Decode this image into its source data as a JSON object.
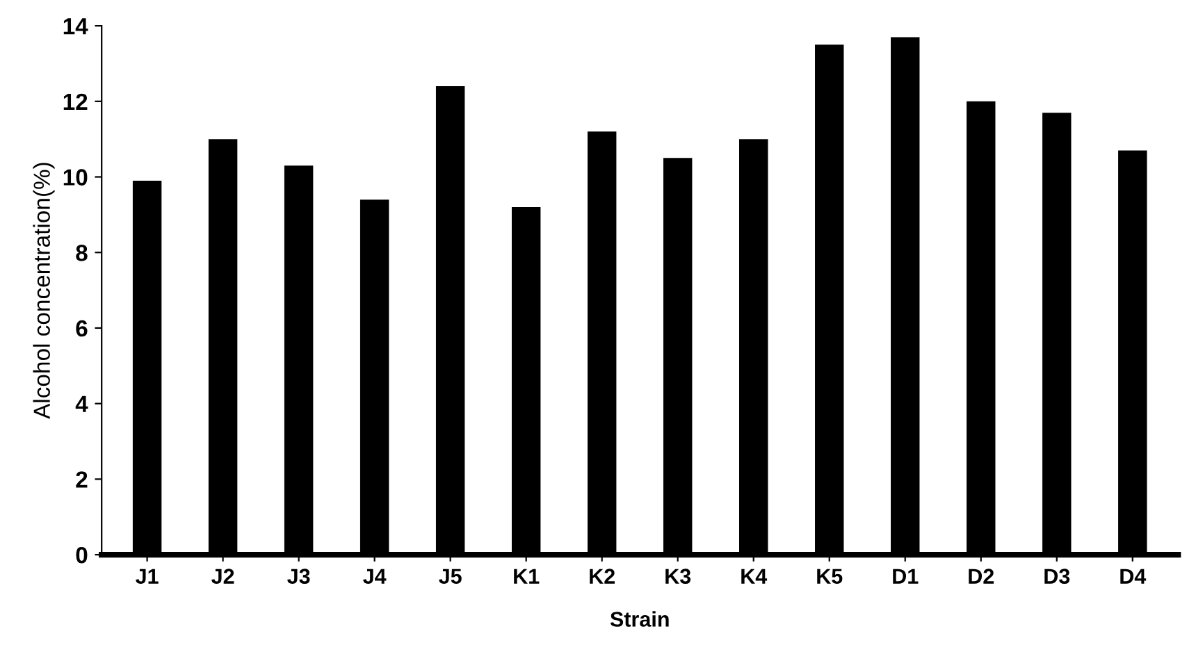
{
  "chart_data": {
    "type": "bar",
    "xlabel": "Strain",
    "ylabel": "Alcohol concentration(%)",
    "categories": [
      "J1",
      "J2",
      "J3",
      "J4",
      "J5",
      "K1",
      "K2",
      "K3",
      "K4",
      "K5",
      "D1",
      "D2",
      "D3",
      "D4"
    ],
    "values": [
      9.9,
      11.0,
      10.3,
      9.4,
      12.4,
      9.2,
      11.2,
      10.5,
      11.0,
      13.5,
      13.7,
      12.0,
      11.7,
      10.7
    ],
    "color": "#000000",
    "ylim": [
      0,
      14
    ],
    "yticks": [
      0,
      2,
      4,
      6,
      8,
      10,
      12,
      14
    ],
    "grid": false
  }
}
